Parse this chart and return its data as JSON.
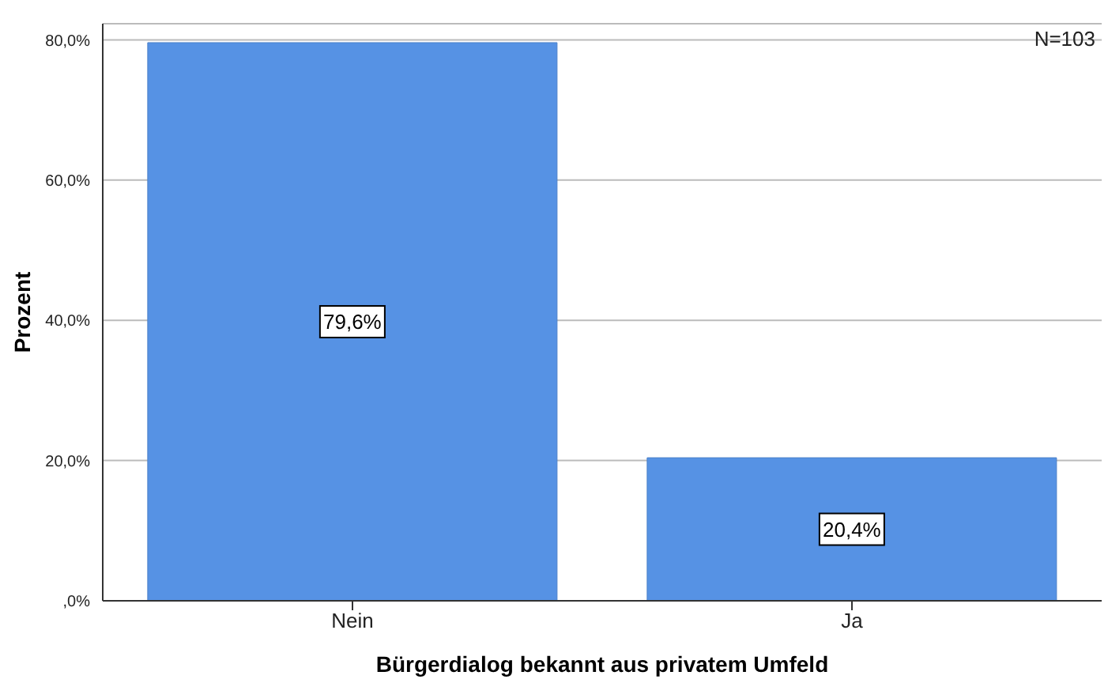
{
  "chart_data": {
    "type": "bar",
    "xlabel": "Bürgerdialog bekannt aus privatem Umfeld",
    "ylabel": "Prozent",
    "categories": [
      "Nein",
      "Ja"
    ],
    "values": [
      79.6,
      20.4
    ],
    "value_labels": [
      "79,6%",
      "20,4%"
    ],
    "color": "#5692e4",
    "ylim": [
      0,
      82.3
    ],
    "yticks": [
      {
        "value": 0,
        "label": ",0%"
      },
      {
        "value": 20,
        "label": "20,0%"
      },
      {
        "value": 40,
        "label": "40,0%"
      },
      {
        "value": 60,
        "label": "60,0%"
      },
      {
        "value": 80,
        "label": "80,0%"
      }
    ],
    "grid": "y",
    "annotations": [
      "N=103"
    ]
  }
}
